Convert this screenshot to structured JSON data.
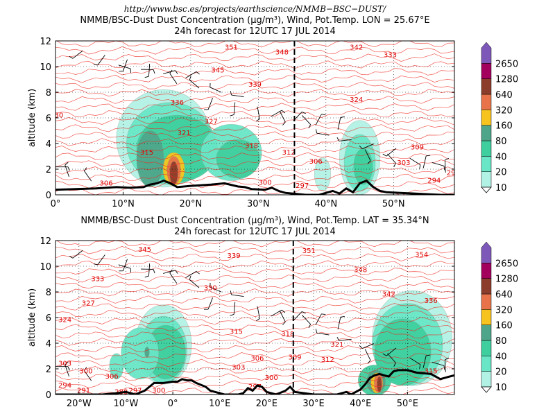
{
  "header": {
    "url": "http://www.bsc.es/projects/earthscience/NMMB−BSC−DUST/"
  },
  "chart_data": [
    {
      "type": "contour",
      "title": "NMMB/BSC-Dust Dust Concentration (µg/m³), Wind, Pot.Temp. LON = 25.67°E",
      "subtitle": "24h forecast for 12UTC 17 JUL 2014",
      "ylabel": "altitude (km)",
      "xlabel": "",
      "xlim": [
        0,
        59
      ],
      "ylim": [
        0,
        12
      ],
      "x_ticks": [
        0,
        10,
        20,
        30,
        40,
        50
      ],
      "x_tick_labels": [
        "0°",
        "10°N",
        "20°N",
        "30°N",
        "40°N",
        "50°N"
      ],
      "y_ticks": [
        0,
        2,
        4,
        6,
        8,
        10,
        12
      ],
      "grid": true,
      "marker_line_x": 35.34,
      "terrain": [
        [
          0,
          0.4
        ],
        [
          3,
          0.45
        ],
        [
          6,
          0.5
        ],
        [
          9,
          0.6
        ],
        [
          11,
          0.55
        ],
        [
          13,
          0.6
        ],
        [
          14,
          0.8
        ],
        [
          15,
          0.9
        ],
        [
          16,
          1.1
        ],
        [
          17,
          0.9
        ],
        [
          18,
          0.6
        ],
        [
          20,
          0.7
        ],
        [
          23,
          0.8
        ],
        [
          25,
          0.9
        ],
        [
          27,
          0.65
        ],
        [
          28,
          0.6
        ],
        [
          29,
          0.45
        ],
        [
          31,
          0.4
        ],
        [
          32,
          0.55
        ],
        [
          33,
          0.3
        ],
        [
          34,
          0.15
        ],
        [
          35,
          0.1
        ],
        [
          37,
          0
        ],
        [
          39,
          0
        ],
        [
          41,
          0.3
        ],
        [
          42,
          0.1
        ],
        [
          43,
          0.5
        ],
        [
          44,
          0.2
        ],
        [
          45,
          0.9
        ],
        [
          46,
          1.1
        ],
        [
          47,
          0.6
        ],
        [
          48,
          0.3
        ],
        [
          49,
          0.2
        ],
        [
          51,
          0.15
        ],
        [
          53,
          0.1
        ],
        [
          55,
          0.05
        ],
        [
          57,
          0
        ],
        [
          59,
          0
        ]
      ],
      "dust_blobs": [
        {
          "x": 16,
          "y": 4.4,
          "rx": 7.0,
          "ry": 3.8,
          "level": 10
        },
        {
          "x": 17,
          "y": 4.0,
          "rx": 6.5,
          "ry": 3.2,
          "level": 20
        },
        {
          "x": 18,
          "y": 3.6,
          "rx": 6.0,
          "ry": 2.6,
          "level": 40
        },
        {
          "x": 14,
          "y": 2.8,
          "rx": 2.0,
          "ry": 2.2,
          "level": 80
        },
        {
          "x": 17.5,
          "y": 2.0,
          "rx": 1.6,
          "ry": 1.3,
          "level": 160
        },
        {
          "x": 17.5,
          "y": 1.9,
          "rx": 1.0,
          "ry": 1.1,
          "level": 320
        },
        {
          "x": 17.5,
          "y": 1.7,
          "rx": 0.6,
          "ry": 0.9,
          "level": 640
        },
        {
          "x": 26,
          "y": 3.3,
          "rx": 4.5,
          "ry": 2.2,
          "level": 20
        },
        {
          "x": 27,
          "y": 2.8,
          "rx": 3.2,
          "ry": 1.5,
          "level": 40
        },
        {
          "x": 39.5,
          "y": 1.6,
          "rx": 1.2,
          "ry": 1.3,
          "level": 10
        },
        {
          "x": 45,
          "y": 2.9,
          "rx": 3.0,
          "ry": 2.9,
          "level": 10
        },
        {
          "x": 45,
          "y": 2.5,
          "rx": 2.3,
          "ry": 2.2,
          "level": 20
        },
        {
          "x": 45.5,
          "y": 2.2,
          "rx": 1.4,
          "ry": 1.4,
          "level": 40
        }
      ],
      "theta_labels": [
        {
          "x": 26,
          "y": 11.5,
          "t": "351"
        },
        {
          "x": 33.5,
          "y": 11.1,
          "t": "348"
        },
        {
          "x": 44.5,
          "y": 11.5,
          "t": "342"
        },
        {
          "x": 49.5,
          "y": 10.9,
          "t": "333"
        },
        {
          "x": 24,
          "y": 9.7,
          "t": "345"
        },
        {
          "x": 29.5,
          "y": 8.6,
          "t": "339"
        },
        {
          "x": 18,
          "y": 7.2,
          "t": "336"
        },
        {
          "x": 44.5,
          "y": 7.4,
          "t": "324"
        },
        {
          "x": 0.5,
          "y": 6.2,
          "t": "30"
        },
        {
          "x": 23,
          "y": 5.7,
          "t": "327"
        },
        {
          "x": 19,
          "y": 4.8,
          "t": "321"
        },
        {
          "x": 29,
          "y": 3.8,
          "t": "318"
        },
        {
          "x": 13.5,
          "y": 3.3,
          "t": "315"
        },
        {
          "x": 34.5,
          "y": 3.3,
          "t": "312"
        },
        {
          "x": 38.5,
          "y": 2.6,
          "t": "306"
        },
        {
          "x": 53.5,
          "y": 3.7,
          "t": "309"
        },
        {
          "x": 51.5,
          "y": 2.5,
          "t": "303"
        },
        {
          "x": 58.5,
          "y": 1.7,
          "t": "29"
        },
        {
          "x": 56,
          "y": 1.1,
          "t": "294"
        },
        {
          "x": 7.5,
          "y": 0.9,
          "t": "306"
        },
        {
          "x": 31,
          "y": 0.95,
          "t": "300"
        },
        {
          "x": 36.5,
          "y": 0.7,
          "t": "297"
        }
      ]
    },
    {
      "type": "contour",
      "title": "NMMB/BSC-Dust Dust Concentration (µg/m³), Wind, Pot.Temp. LAT = 35.34°N",
      "subtitle": "24h forecast for 12UTC 17 JUL 2014",
      "ylabel": "altitude (km)",
      "xlabel": "",
      "xlim": [
        -25,
        60
      ],
      "ylim": [
        0,
        12
      ],
      "x_ticks": [
        -20,
        -10,
        0,
        10,
        20,
        30,
        40,
        50
      ],
      "x_tick_labels": [
        "20°W",
        "10°W",
        "0°",
        "10°E",
        "20°E",
        "30°E",
        "40°E",
        "50°E"
      ],
      "y_ticks": [
        0,
        2,
        4,
        6,
        8,
        10,
        12
      ],
      "grid": true,
      "marker_line_x": 25.67,
      "terrain": [
        [
          -25,
          0
        ],
        [
          -15,
          0
        ],
        [
          -12,
          0.1
        ],
        [
          -10,
          0.2
        ],
        [
          -8,
          0
        ],
        [
          -6,
          0.3
        ],
        [
          -4,
          0.9
        ],
        [
          -2,
          0.9
        ],
        [
          0,
          1.0
        ],
        [
          1,
          1.0
        ],
        [
          2,
          1.2
        ],
        [
          3,
          1.1
        ],
        [
          4,
          1.1
        ],
        [
          5,
          0.9
        ],
        [
          7,
          0.6
        ],
        [
          8,
          0.3
        ],
        [
          9,
          0.2
        ],
        [
          11,
          0
        ],
        [
          14,
          0
        ],
        [
          15,
          0.1
        ],
        [
          16,
          0.5
        ],
        [
          17,
          0.3
        ],
        [
          18,
          0.7
        ],
        [
          19,
          0.6
        ],
        [
          20,
          0.2
        ],
        [
          22,
          0
        ],
        [
          24,
          0.3
        ],
        [
          25,
          0.6
        ],
        [
          26,
          0.2
        ],
        [
          28,
          0.1
        ],
        [
          30,
          0
        ],
        [
          35,
          0
        ],
        [
          36,
          0.1
        ],
        [
          37,
          0.2
        ],
        [
          38,
          0
        ],
        [
          40,
          0.4
        ],
        [
          41,
          0.8
        ],
        [
          42,
          1.3
        ],
        [
          43,
          1.5
        ],
        [
          44,
          1.6
        ],
        [
          45,
          1.5
        ],
        [
          46,
          1.4
        ],
        [
          47,
          1.8
        ],
        [
          48,
          1.9
        ],
        [
          50,
          1.9
        ],
        [
          52,
          1.7
        ],
        [
          55,
          1.6
        ],
        [
          57,
          1.2
        ],
        [
          59,
          1.4
        ],
        [
          60,
          1.5
        ]
      ],
      "dust_blobs": [
        {
          "x": -2,
          "y": 3.9,
          "rx": 6.0,
          "ry": 3.1,
          "level": 10
        },
        {
          "x": -2,
          "y": 3.5,
          "rx": 5.0,
          "ry": 2.6,
          "level": 20
        },
        {
          "x": -1.5,
          "y": 3.3,
          "rx": 4.2,
          "ry": 2.1,
          "level": 40
        },
        {
          "x": -7,
          "y": 3.2,
          "rx": 4.0,
          "ry": 2.0,
          "level": 20
        },
        {
          "x": -5.5,
          "y": 3.3,
          "rx": 0.5,
          "ry": 0.4,
          "level": 80
        },
        {
          "x": -12,
          "y": 2.2,
          "rx": 1.5,
          "ry": 1.0,
          "level": 20
        },
        {
          "x": 51,
          "y": 4.4,
          "rx": 8.5,
          "ry": 3.7,
          "level": 10
        },
        {
          "x": 50,
          "y": 3.9,
          "rx": 7.5,
          "ry": 3.2,
          "level": 20
        },
        {
          "x": 49,
          "y": 3.3,
          "rx": 6.0,
          "ry": 2.6,
          "level": 40
        },
        {
          "x": 43,
          "y": 1.1,
          "rx": 3.5,
          "ry": 1.2,
          "level": 40
        },
        {
          "x": 43.3,
          "y": 1.0,
          "rx": 2.0,
          "ry": 0.9,
          "level": 80
        },
        {
          "x": 43.5,
          "y": 0.9,
          "rx": 1.3,
          "ry": 0.8,
          "level": 160
        },
        {
          "x": 43.8,
          "y": 0.9,
          "rx": 0.9,
          "ry": 0.75,
          "level": 320
        },
        {
          "x": 44,
          "y": 0.8,
          "rx": 0.5,
          "ry": 0.6,
          "level": 640
        }
      ],
      "theta_labels": [
        {
          "x": -6,
          "y": 11.3,
          "t": "345"
        },
        {
          "x": 29,
          "y": 11.2,
          "t": "351"
        },
        {
          "x": 53,
          "y": 10.9,
          "t": "354"
        },
        {
          "x": 13,
          "y": 10.8,
          "t": "339"
        },
        {
          "x": 40,
          "y": 9.7,
          "t": "348"
        },
        {
          "x": -16,
          "y": 9.0,
          "t": "333"
        },
        {
          "x": 8,
          "y": 8.3,
          "t": "330"
        },
        {
          "x": 46,
          "y": 7.8,
          "t": "342"
        },
        {
          "x": -18,
          "y": 7.1,
          "t": "327"
        },
        {
          "x": 55,
          "y": 7.3,
          "t": "336"
        },
        {
          "x": -23,
          "y": 5.8,
          "t": "324"
        },
        {
          "x": 13.5,
          "y": 4.9,
          "t": "315"
        },
        {
          "x": 24.5,
          "y": 4.7,
          "t": "318"
        },
        {
          "x": 35,
          "y": 3.9,
          "t": "321"
        },
        {
          "x": -23,
          "y": 2.4,
          "t": "303"
        },
        {
          "x": -18.5,
          "y": 1.8,
          "t": "300"
        },
        {
          "x": -13,
          "y": 1.4,
          "t": "306"
        },
        {
          "x": 18,
          "y": 2.8,
          "t": "306"
        },
        {
          "x": 26,
          "y": 2.9,
          "t": "309"
        },
        {
          "x": 33,
          "y": 2.7,
          "t": "312"
        },
        {
          "x": 14,
          "y": 2.1,
          "t": "303"
        },
        {
          "x": 21,
          "y": 1.3,
          "t": "300"
        },
        {
          "x": 17.5,
          "y": 0.6,
          "t": "297"
        },
        {
          "x": -23,
          "y": 0.7,
          "t": "294"
        },
        {
          "x": -19,
          "y": 0.3,
          "t": "291"
        },
        {
          "x": -11,
          "y": 0.2,
          "t": "288"
        },
        {
          "x": -8,
          "y": 0.3,
          "t": "297"
        },
        {
          "x": -3,
          "y": 0.3,
          "t": "300"
        },
        {
          "x": 55,
          "y": 1.8,
          "t": "315"
        }
      ]
    }
  ],
  "colorbar": {
    "levels": [
      "10",
      "20",
      "40",
      "80",
      "160",
      "320",
      "640",
      "1280",
      "2650"
    ],
    "colors": [
      "#b2f2e5",
      "#68e6c6",
      "#3fcf9e",
      "#4fa58a",
      "#f7c41f",
      "#e8734a",
      "#8b3c2a",
      "#a3005d",
      "#7d58b8"
    ],
    "theta_color": "#ef2b22",
    "terrain_color": "#000000"
  }
}
